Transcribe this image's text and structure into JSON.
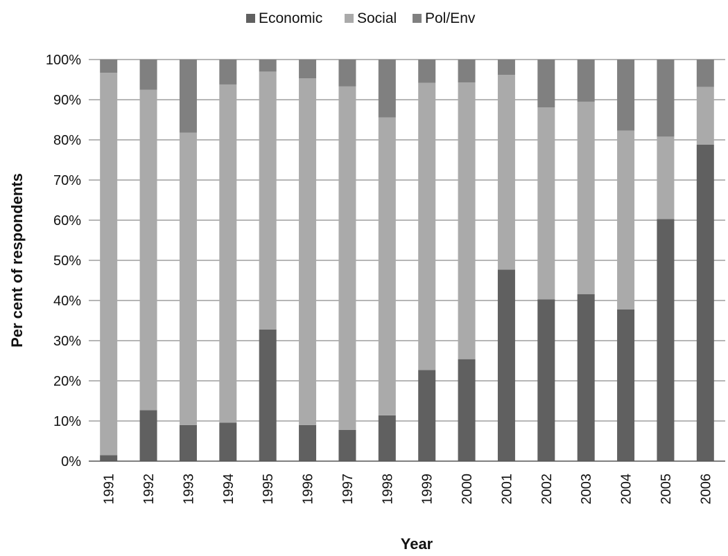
{
  "chart_data": {
    "type": "bar",
    "stacked": true,
    "percent": true,
    "categories": [
      "1991",
      "1992",
      "1993",
      "1994",
      "1995",
      "1996",
      "1997",
      "1998",
      "1999",
      "2000",
      "2001",
      "2002",
      "2003",
      "2004",
      "2005",
      "2006"
    ],
    "series": [
      {
        "name": "Economic",
        "color": "#606060",
        "values": [
          1.5,
          12.7,
          9.0,
          9.6,
          32.8,
          9.0,
          7.8,
          11.4,
          22.7,
          25.4,
          47.7,
          40.3,
          41.6,
          37.8,
          60.3,
          78.8
        ]
      },
      {
        "name": "Social",
        "color": "#aaaaaa",
        "values": [
          95.2,
          79.8,
          72.8,
          84.2,
          64.2,
          86.3,
          85.5,
          74.2,
          71.5,
          68.9,
          48.5,
          47.8,
          47.9,
          44.5,
          20.5,
          14.4
        ]
      },
      {
        "name": "Pol/Env",
        "color": "#808080",
        "values": [
          3.3,
          7.5,
          18.2,
          6.2,
          3.0,
          4.7,
          6.7,
          14.4,
          5.8,
          5.7,
          3.8,
          11.9,
          10.5,
          17.7,
          19.2,
          6.8
        ]
      }
    ],
    "yticks": [
      "0%",
      "10%",
      "20%",
      "30%",
      "40%",
      "50%",
      "60%",
      "70%",
      "80%",
      "90%",
      "100%"
    ],
    "ylim": [
      0,
      100
    ],
    "xlabel": "Year",
    "ylabel": "Per cent of respondents",
    "legend_position": "top",
    "grid": true
  }
}
